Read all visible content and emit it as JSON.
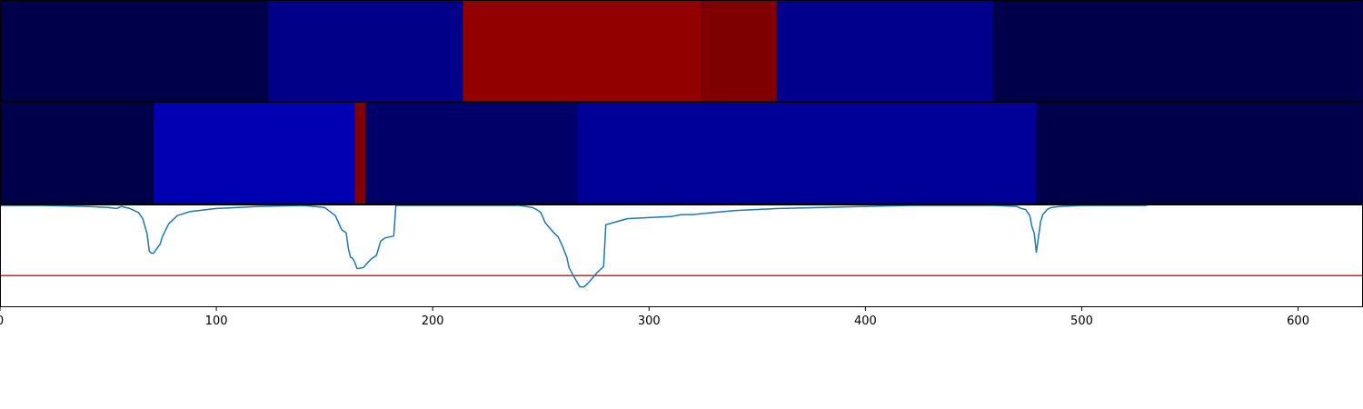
{
  "chart_data": [
    {
      "type": "heatmap",
      "panel": "top-band",
      "xlim": [
        0,
        630
      ],
      "segments": [
        {
          "x0": 0,
          "x1": 124,
          "color": "#00004a"
        },
        {
          "x0": 124,
          "x1": 214,
          "color": "#000088"
        },
        {
          "x0": 214,
          "x1": 324,
          "color": "#920000"
        },
        {
          "x0": 324,
          "x1": 359,
          "color": "#7e0000"
        },
        {
          "x0": 359,
          "x1": 459,
          "color": "#00008c"
        },
        {
          "x0": 459,
          "x1": 630,
          "color": "#00004a"
        }
      ]
    },
    {
      "type": "heatmap",
      "panel": "middle-band",
      "xlim": [
        0,
        630
      ],
      "segments": [
        {
          "x0": 0,
          "x1": 71,
          "color": "#00004a"
        },
        {
          "x0": 71,
          "x1": 164,
          "color": "#0000b2"
        },
        {
          "x0": 164,
          "x1": 169,
          "color": "#820000"
        },
        {
          "x0": 169,
          "x1": 267,
          "color": "#000068"
        },
        {
          "x0": 267,
          "x1": 479,
          "color": "#000098"
        },
        {
          "x0": 479,
          "x1": 630,
          "color": "#00004a"
        }
      ]
    },
    {
      "type": "line",
      "panel": "signal",
      "xlim": [
        0,
        630
      ],
      "ylim": [
        0,
        1
      ],
      "grid": false,
      "x_ticks": [
        "0",
        "100",
        "200",
        "300",
        "400",
        "500",
        "600"
      ],
      "x_tick_values": [
        0,
        100,
        200,
        300,
        400,
        500,
        600
      ],
      "threshold": {
        "y": 0.31,
        "color": "#e41a1c"
      },
      "series": [
        {
          "color": "#1f77b4",
          "x": [
            0,
            20,
            40,
            50,
            54,
            56,
            60,
            64,
            66,
            68,
            69,
            70,
            71,
            72,
            74,
            75,
            78,
            82,
            88,
            100,
            120,
            140,
            150,
            155,
            158,
            160,
            161,
            162,
            163,
            164,
            165,
            166,
            168,
            170,
            172,
            174,
            176,
            178,
            180,
            182,
            183,
            200,
            240,
            246,
            248,
            250,
            252,
            256,
            258,
            260,
            262,
            263,
            265,
            268,
            270,
            272,
            274,
            276,
            278,
            279,
            280,
            285,
            290,
            300,
            310,
            315,
            320,
            330,
            340,
            350,
            360,
            380,
            400,
            420,
            440,
            460,
            470,
            472,
            474,
            476,
            477,
            478,
            479,
            480,
            481,
            482,
            484,
            486,
            490,
            500,
            530
          ],
          "y": [
            1.0,
            1.0,
            0.99,
            0.98,
            0.97,
            0.99,
            0.97,
            0.93,
            0.87,
            0.72,
            0.55,
            0.53,
            0.53,
            0.56,
            0.62,
            0.69,
            0.82,
            0.9,
            0.94,
            0.97,
            0.99,
            1.0,
            0.98,
            0.9,
            0.76,
            0.73,
            0.58,
            0.49,
            0.48,
            0.44,
            0.38,
            0.38,
            0.39,
            0.44,
            0.48,
            0.51,
            0.65,
            0.68,
            0.69,
            0.7,
            1.0,
            1.0,
            1.0,
            0.98,
            0.96,
            0.93,
            0.83,
            0.73,
            0.69,
            0.6,
            0.49,
            0.39,
            0.31,
            0.2,
            0.2,
            0.24,
            0.29,
            0.34,
            0.38,
            0.4,
            0.81,
            0.84,
            0.87,
            0.88,
            0.89,
            0.91,
            0.91,
            0.93,
            0.95,
            0.96,
            0.97,
            0.98,
            0.99,
            1.0,
            1.0,
            1.0,
            0.99,
            0.97,
            0.96,
            0.9,
            0.79,
            0.73,
            0.54,
            0.69,
            0.84,
            0.91,
            0.96,
            0.98,
            0.99,
            1.0,
            1.0
          ]
        }
      ]
    }
  ]
}
